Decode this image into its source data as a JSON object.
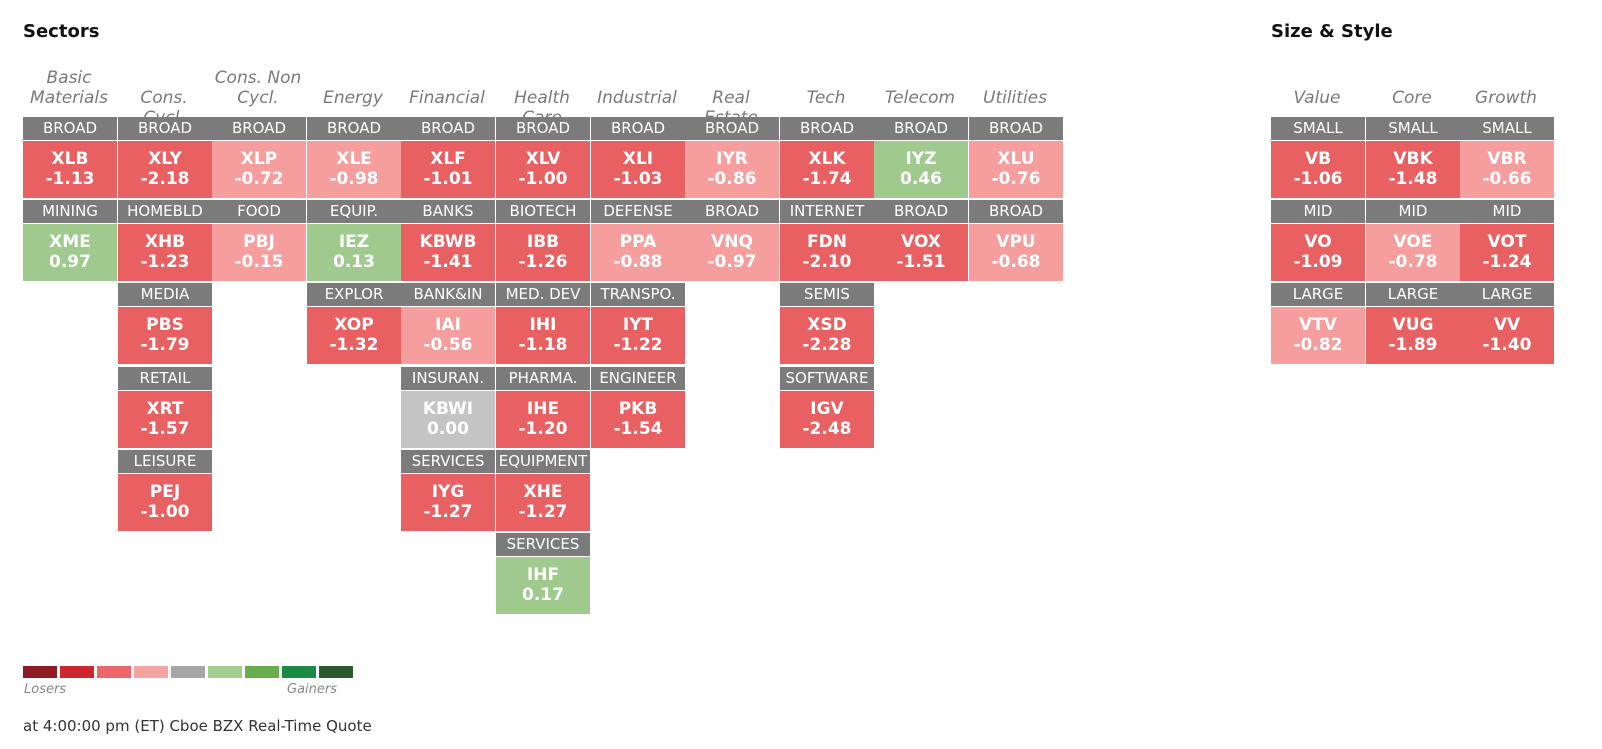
{
  "sectors_title": "Sectors",
  "size_style_title": "Size & Style",
  "sectors": [
    {
      "name": "Basic Materials",
      "tiles": [
        {
          "label": "BROAD",
          "ticker": "XLB",
          "change": "-1.13",
          "tone": "neg-mid"
        },
        {
          "label": "MINING",
          "ticker": "XME",
          "change": "0.97",
          "tone": "pos-light"
        }
      ]
    },
    {
      "name": "Cons. Cycl.",
      "tiles": [
        {
          "label": "BROAD",
          "ticker": "XLY",
          "change": "-2.18",
          "tone": "neg-mid"
        },
        {
          "label": "HOMEBLD",
          "ticker": "XHB",
          "change": "-1.23",
          "tone": "neg-mid"
        },
        {
          "label": "MEDIA",
          "ticker": "PBS",
          "change": "-1.79",
          "tone": "neg-mid"
        },
        {
          "label": "RETAIL",
          "ticker": "XRT",
          "change": "-1.57",
          "tone": "neg-mid"
        },
        {
          "label": "LEISURE",
          "ticker": "PEJ",
          "change": "-1.00",
          "tone": "neg-mid"
        }
      ]
    },
    {
      "name": "Cons. Non Cycl.",
      "tiles": [
        {
          "label": "BROAD",
          "ticker": "XLP",
          "change": "-0.72",
          "tone": "neg-light"
        },
        {
          "label": "FOOD",
          "ticker": "PBJ",
          "change": "-0.15",
          "tone": "neg-light"
        }
      ]
    },
    {
      "name": "Energy",
      "tiles": [
        {
          "label": "BROAD",
          "ticker": "XLE",
          "change": "-0.98",
          "tone": "neg-light"
        },
        {
          "label": "EQUIP.",
          "ticker": "IEZ",
          "change": "0.13",
          "tone": "pos-light"
        },
        {
          "label": "EXPLOR",
          "ticker": "XOP",
          "change": "-1.32",
          "tone": "neg-mid"
        }
      ]
    },
    {
      "name": "Financial",
      "tiles": [
        {
          "label": "BROAD",
          "ticker": "XLF",
          "change": "-1.01",
          "tone": "neg-mid"
        },
        {
          "label": "BANKS",
          "ticker": "KBWB",
          "change": "-1.41",
          "tone": "neg-mid"
        },
        {
          "label": "BANK&IN",
          "ticker": "IAI",
          "change": "-0.56",
          "tone": "neg-light"
        },
        {
          "label": "INSURAN.",
          "ticker": "KBWI",
          "change": "0.00",
          "tone": "zero"
        },
        {
          "label": "SERVICES",
          "ticker": "IYG",
          "change": "-1.27",
          "tone": "neg-mid"
        }
      ]
    },
    {
      "name": "Health Care",
      "tiles": [
        {
          "label": "BROAD",
          "ticker": "XLV",
          "change": "-1.00",
          "tone": "neg-mid"
        },
        {
          "label": "BIOTECH",
          "ticker": "IBB",
          "change": "-1.26",
          "tone": "neg-mid"
        },
        {
          "label": "MED. DEV",
          "ticker": "IHI",
          "change": "-1.18",
          "tone": "neg-mid"
        },
        {
          "label": "PHARMA.",
          "ticker": "IHE",
          "change": "-1.20",
          "tone": "neg-mid"
        },
        {
          "label": "EQUIPMENT",
          "ticker": "XHE",
          "change": "-1.27",
          "tone": "neg-mid"
        },
        {
          "label": "SERVICES",
          "ticker": "IHF",
          "change": "0.17",
          "tone": "pos-light"
        }
      ]
    },
    {
      "name": "Industrial",
      "tiles": [
        {
          "label": "BROAD",
          "ticker": "XLI",
          "change": "-1.03",
          "tone": "neg-mid"
        },
        {
          "label": "DEFENSE",
          "ticker": "PPA",
          "change": "-0.88",
          "tone": "neg-light"
        },
        {
          "label": "TRANSPO.",
          "ticker": "IYT",
          "change": "-1.22",
          "tone": "neg-mid"
        },
        {
          "label": "ENGINEER",
          "ticker": "PKB",
          "change": "-1.54",
          "tone": "neg-mid"
        }
      ]
    },
    {
      "name": "Real Estate",
      "tiles": [
        {
          "label": "BROAD",
          "ticker": "IYR",
          "change": "-0.86",
          "tone": "neg-light"
        },
        {
          "label": "BROAD",
          "ticker": "VNQ",
          "change": "-0.97",
          "tone": "neg-light"
        }
      ]
    },
    {
      "name": "Tech",
      "tiles": [
        {
          "label": "BROAD",
          "ticker": "XLK",
          "change": "-1.74",
          "tone": "neg-mid"
        },
        {
          "label": "INTERNET",
          "ticker": "FDN",
          "change": "-2.10",
          "tone": "neg-mid"
        },
        {
          "label": "SEMIS",
          "ticker": "XSD",
          "change": "-2.28",
          "tone": "neg-mid"
        },
        {
          "label": "SOFTWARE",
          "ticker": "IGV",
          "change": "-2.48",
          "tone": "neg-mid"
        }
      ]
    },
    {
      "name": "Telecom",
      "tiles": [
        {
          "label": "BROAD",
          "ticker": "IYZ",
          "change": "0.46",
          "tone": "pos-light"
        },
        {
          "label": "BROAD",
          "ticker": "VOX",
          "change": "-1.51",
          "tone": "neg-mid"
        }
      ]
    },
    {
      "name": "Utilities",
      "tiles": [
        {
          "label": "BROAD",
          "ticker": "XLU",
          "change": "-0.76",
          "tone": "neg-light"
        },
        {
          "label": "BROAD",
          "ticker": "VPU",
          "change": "-0.68",
          "tone": "neg-light"
        }
      ]
    }
  ],
  "size_style": [
    {
      "name": "Value",
      "tiles": [
        {
          "label": "SMALL",
          "ticker": "VB",
          "change": "-1.06",
          "tone": "neg-mid"
        },
        {
          "label": "MID",
          "ticker": "VO",
          "change": "-1.09",
          "tone": "neg-mid"
        },
        {
          "label": "LARGE",
          "ticker": "VTV",
          "change": "-0.82",
          "tone": "neg-light"
        }
      ]
    },
    {
      "name": "Core",
      "tiles": [
        {
          "label": "SMALL",
          "ticker": "VBK",
          "change": "-1.48",
          "tone": "neg-mid"
        },
        {
          "label": "MID",
          "ticker": "VOE",
          "change": "-0.78",
          "tone": "neg-light"
        },
        {
          "label": "LARGE",
          "ticker": "VUG",
          "change": "-1.89",
          "tone": "neg-mid"
        }
      ]
    },
    {
      "name": "Growth",
      "tiles": [
        {
          "label": "SMALL",
          "ticker": "VBR",
          "change": "-0.66",
          "tone": "neg-light"
        },
        {
          "label": "MID",
          "ticker": "VOT",
          "change": "-1.24",
          "tone": "neg-mid"
        },
        {
          "label": "LARGE",
          "ticker": "VV",
          "change": "-1.40",
          "tone": "neg-mid"
        }
      ]
    }
  ],
  "legend": {
    "colors": [
      "#8e1c22",
      "#cf262d",
      "#ee6667",
      "#f5a3a2",
      "#a6a6a6",
      "#a3cd8c",
      "#68ae4d",
      "#198b45",
      "#2b5a2e"
    ],
    "losers_label": "Losers",
    "gainers_label": "Gainers"
  },
  "footer": "at 4:00:00 pm (ET) Cboe BZX Real-Time Quote"
}
